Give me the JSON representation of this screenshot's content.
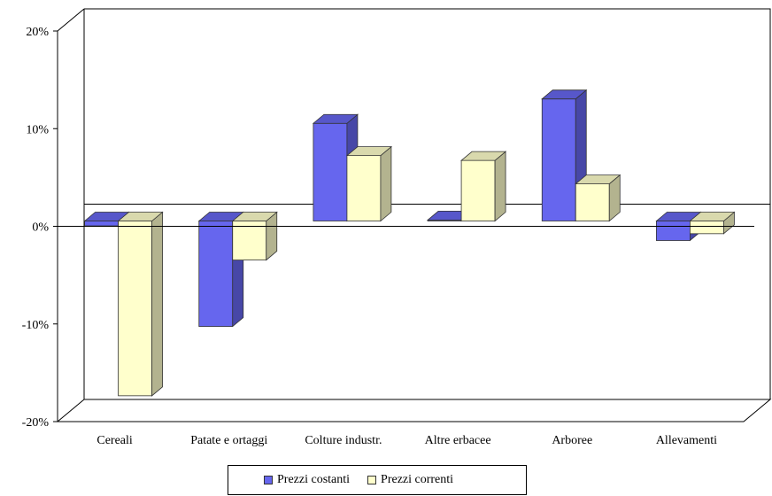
{
  "chart_data": {
    "type": "bar",
    "style": "3d-clustered-column",
    "categories": [
      "Cereali",
      "Patate e ortaggi",
      "Colture industr.",
      "Altre erbacee",
      "Arboree",
      "Allevamenti"
    ],
    "series": [
      {
        "name": "Prezzi costanti",
        "color": "#6666ee",
        "values": [
          -0.5,
          -10.8,
          10.0,
          0.1,
          12.5,
          -2.0
        ]
      },
      {
        "name": "Prezzi correnti",
        "color": "#ffffcc",
        "values": [
          -17.9,
          -4.0,
          6.7,
          6.2,
          3.8,
          -1.3
        ]
      }
    ],
    "yticks": [
      "20%",
      "10%",
      "0%",
      "-10%",
      "-20%"
    ],
    "ylim": [
      -20,
      20
    ],
    "legend_position": "bottom",
    "grid": false
  }
}
